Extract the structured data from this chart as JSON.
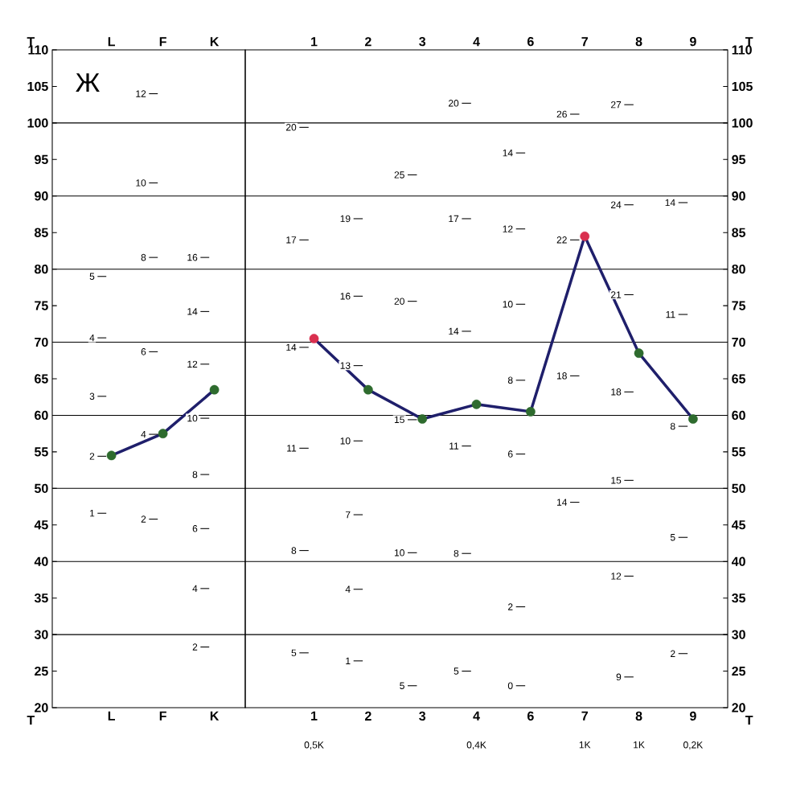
{
  "chart_data": [
    {
      "type": "line",
      "categories": [
        "L",
        "F",
        "K"
      ],
      "values": [
        54.5,
        57.5,
        63.5
      ],
      "color": "#1f1f6b",
      "colors": [
        "#2e6b2e",
        "#2e6b2e",
        "#2e6b2e"
      ],
      "marker": "circle",
      "ylim": [
        20,
        110
      ],
      "yticks": [
        20,
        25,
        30,
        35,
        40,
        45,
        50,
        55,
        60,
        65,
        70,
        75,
        80,
        85,
        90,
        95,
        100,
        105,
        110
      ],
      "grid": "y",
      "ylabel": "T",
      "annotations": [
        "Ж",
        "5",
        "4",
        "3",
        "2",
        "1",
        "12",
        "10",
        "8",
        "6",
        "4",
        "2",
        "16",
        "14",
        "12",
        "10",
        "8",
        "6",
        "4",
        "2"
      ]
    },
    {
      "type": "line",
      "categories": [
        "1",
        "2",
        "3",
        "4",
        "6",
        "7",
        "8",
        "9"
      ],
      "values": [
        70.5,
        63.5,
        59.5,
        61.5,
        60.5,
        84.5,
        68.5,
        59.5
      ],
      "color": "#1f1f6b",
      "colors": [
        "#d9304f",
        "#2e6b2e",
        "#2e6b2e",
        "#2e6b2e",
        "#2e6b2e",
        "#d9304f",
        "#2e6b2e",
        "#2e6b2e"
      ],
      "marker": "circle",
      "ylim": [
        20,
        110
      ],
      "yticks": [
        20,
        25,
        30,
        35,
        40,
        45,
        50,
        55,
        60,
        65,
        70,
        75,
        80,
        85,
        90,
        95,
        100,
        105,
        110
      ],
      "grid": "y",
      "ylabel": "T",
      "annotations": [
        "20",
        "17",
        "14",
        "11",
        "8",
        "5",
        "19",
        "16",
        "13",
        "10",
        "7",
        "4",
        "1",
        "25",
        "20",
        "15",
        "10",
        "5",
        "20",
        "17",
        "14",
        "11",
        "8",
        "5",
        "14",
        "12",
        "10",
        "8",
        "6",
        "2",
        "0",
        "26",
        "22",
        "18",
        "14",
        "27",
        "24",
        "21",
        "18",
        "15",
        "12",
        "9",
        "14",
        "11",
        "8",
        "5",
        "2",
        "0,5K",
        "0,4K",
        "1K",
        "1K",
        "0,2K"
      ]
    }
  ]
}
